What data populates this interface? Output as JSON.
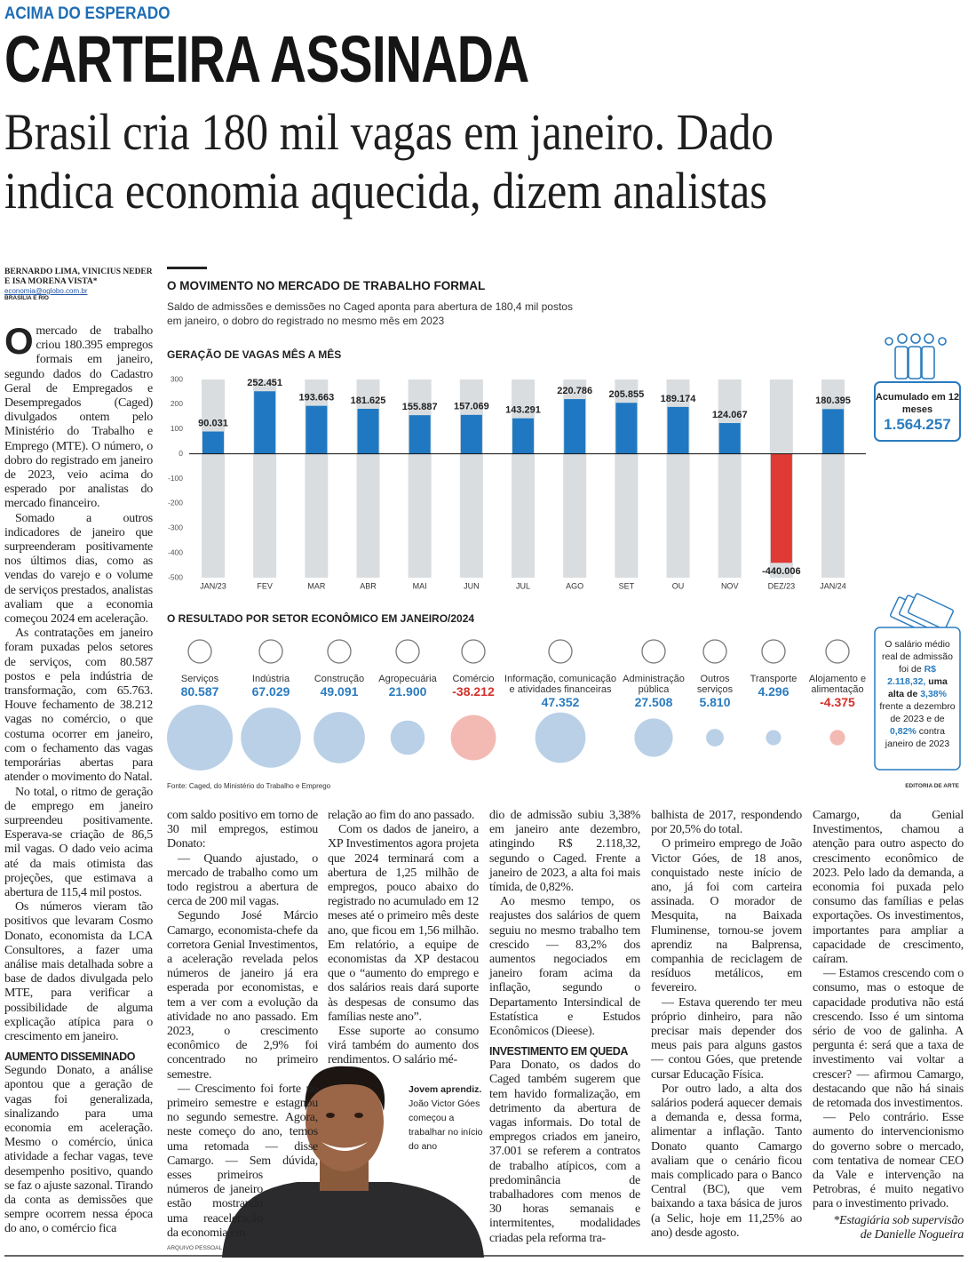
{
  "kicker": "ACIMA DO ESPERADO",
  "headline": "CARTEIRA ASSINADA",
  "deck": "Brasil cria 180 mil vagas em janeiro. Dado indica economia aquecida, dizem analistas",
  "byline": {
    "authors": "BERNARDO LIMA, VINICIUS NEDER E ISA MORENA VISTA*",
    "email": "economia@oglobo.com.br",
    "place": "BRASÍLIA E RIO"
  },
  "infographic": {
    "title": "O MOVIMENTO NO MERCADO DE TRABALHO FORMAL",
    "subtitle": "Saldo de admissões e demissões no Caged aponta para abertura de 180,4 mil postos em janeiro, o dobro do registrado no mesmo mês em 2023",
    "summary": {
      "label": "Acumulado em 12 meses",
      "value": "1.564.257"
    },
    "salary_note": [
      {
        "text": "O salário médio real de admissão foi de ",
        "style": "plain"
      },
      {
        "text": "R$ 2.118,32,",
        "style": "blue"
      },
      {
        "text": " uma alta de ",
        "style": "bold"
      },
      {
        "text": "3,38%",
        "style": "blue"
      },
      {
        "text": " frente a dezembro de 2023 e de ",
        "style": "plain"
      },
      {
        "text": "0,82%",
        "style": "blue"
      },
      {
        "text": " contra janeiro de 2023",
        "style": "plain"
      }
    ],
    "source": "Fonte: Caged, do Ministério do Trabalho e Emprego",
    "credit": "EDITORIA DE ARTE"
  },
  "chart_data": [
    {
      "type": "bar",
      "title": "GERAÇÃO DE VAGAS MÊS A MÊS",
      "categories": [
        "JAN/23",
        "FEV",
        "MAR",
        "ABR",
        "MAI",
        "JUN",
        "JUL",
        "AGO",
        "SET",
        "OU",
        "NOV",
        "DEZ/23",
        "JAN/24"
      ],
      "values": [
        90.031,
        252.451,
        193.663,
        181.625,
        155.887,
        157.069,
        143.291,
        220.786,
        205.855,
        189.174,
        124.067,
        -440.006,
        180.395
      ],
      "color": "#1f78c1",
      "negative_color": "#df3a33",
      "background_color": "#d9dde0",
      "ylim": [
        -500,
        300
      ],
      "yticks": [
        300,
        200,
        100,
        0,
        -100,
        -200,
        -300,
        -400,
        -500
      ],
      "grid": false
    },
    {
      "type": "bubble",
      "title": "O RESULTADO POR SETOR ECONÔMICO EM JANEIRO/2024",
      "categories": [
        "Serviços",
        "Indústria",
        "Construção",
        "Agropecuária",
        "Comércio",
        "Informação, comunicação e atividades financeiras",
        "Administração pública",
        "Outros serviços",
        "Transporte",
        "Alojamento e alimentação"
      ],
      "values": [
        80.587,
        67.029,
        49.091,
        21.9,
        -38.212,
        47.352,
        27.508,
        5.81,
        4.296,
        -4.375
      ],
      "value_labels": [
        "80.587",
        "67.029",
        "49.091",
        "21.900",
        "-38.212",
        "47.352",
        "27.508",
        "5.810",
        "4.296",
        "-4.375"
      ],
      "color": "#b9d0e7",
      "negative_color": "#f3bab3",
      "label_color": "#2b7cc0",
      "negative_label_color": "#d6302a"
    }
  ],
  "columns": [
    {
      "blocks": [
        {
          "dropcap": "O",
          "text": "mercado de trabalho criou 180.395 empregos formais em janeiro, segundo dados do Cadastro Geral de Empregados e Desempregados (Caged) divulgados ontem pelo Ministério do Trabalho e Emprego (MTE). O número, o dobro do registrado em janeiro de 2023, veio acima do esperado por analistas do mercado financeiro."
        },
        {
          "text": "Somado a outros indicadores de janeiro que surpreenderam positivamente nos últimos dias, como as vendas do varejo e o volume de serviços prestados, analistas avaliam que a economia começou 2024 em aceleração."
        },
        {
          "text": "As contratações em janeiro foram puxadas pelos setores de serviços, com 80.587 postos e pela indústria de transformação, com 65.763. Houve fechamento de 38.212 vagas no comércio, o que costuma ocorrer em janeiro, com o fechamento das vagas temporárias abertas para atender o movimento do Natal."
        },
        {
          "text": "No total, o ritmo de geração de emprego em janeiro surpreendeu positivamente. Esperava-se criação de 86,5 mil vagas. O dado veio acima até da mais otimista das projeções, que estimava a abertura de 115,4 mil postos."
        },
        {
          "text": "Os números vieram tão positivos que levaram Cosmo Donato, economista da LCA Consultores, a fazer uma análise mais detalhada sobre a base de dados divulgada pelo MTE, para verificar a possibilidade de alguma explicação atípica para o crescimento em janeiro."
        },
        {
          "subhead": "AUMENTO DISSEMINADO"
        },
        {
          "text": "Segundo Donato, a análise apontou que a geração de vagas foi generalizada, sinalizando para uma economia em aceleração. Mesmo o comércio, única atividade a fechar vagas, teve desempenho positivo, quando se faz o ajuste sazonal. Tirando da conta as demissões que sempre ocorrem nessa época do ano, o comércio fica"
        }
      ]
    },
    {
      "blocks": [
        {
          "text": "com saldo positivo em torno de 30 mil empregos, estimou Donato:"
        },
        {
          "text": "— Quando ajustado, o mercado de trabalho como um todo registrou a abertura de cerca de 200 mil vagas."
        },
        {
          "text": "Segundo José Márcio Camargo, economista-chefe da corretora Genial Investimentos, a aceleração revelada pelos números de janeiro já era esperada por economistas, e tem a ver com a evolução da atividade no ano passado. Em 2023, o crescimento econômico de 2,9% foi concentrado no primeiro semestre."
        },
        {
          "text": "— Crescimento foi forte no primeiro semestre e estagnou no segundo semestre. Agora, neste começo do ano, temos uma retomada — disse Camargo. — Sem dúvida, esses primeiros números de janeiro estão mostrando uma reaceleração da economia em"
        }
      ]
    },
    {
      "blocks": [
        {
          "text": "relação ao fim do ano passado."
        },
        {
          "text": "Com os dados de janeiro, a XP Investimentos agora projeta que 2024 terminará com a abertura de 1,25 milhão de empregos, pouco abaixo do registrado no acumulado em 12 meses até o primeiro mês deste ano, que ficou em 1,56 milhão. Em relatório, a equipe de economistas da XP destacou que o “aumento do emprego e dos salários reais dará suporte às despesas de consumo das famílias neste ano”."
        },
        {
          "text": "Esse suporte ao consumo virá também do aumento dos rendimentos. O salário mé-"
        }
      ]
    },
    {
      "blocks": [
        {
          "text": "dio de admissão subiu 3,38% em janeiro ante dezembro, atingindo R$ 2.118,32, segundo o Caged. Frente a janeiro de 2023, a alta foi mais tímida, de 0,82%."
        },
        {
          "text": "Ao mesmo tempo, os reajustes dos salários de quem seguiu no mesmo trabalho tem crescido — 83,2% dos aumentos negociados em janeiro foram acima da inflação, segundo o Departamento Intersindical de Estatística e Estudos Econômicos (Dieese)."
        },
        {
          "subhead": "INVESTIMENTO EM QUEDA"
        },
        {
          "text": "Para Donato, os dados do Caged também sugerem que tem havido formalização, em detrimento da abertura de vagas informais. Do total de empregos criados em janeiro, 37.001 se referem a contratos de trabalho atípicos, com a predominância de trabalhadores com menos de 30 horas semanais e intermitentes, modalidades criadas pela reforma tra-"
        }
      ]
    },
    {
      "blocks": [
        {
          "text": "balhista de 2017, respondendo por 20,5% do total."
        },
        {
          "text": "O primeiro emprego de João Victor Góes, de 18 anos, conquistado neste início de ano, já foi com carteira assinada. O morador de Mesquita, na Baixada Fluminense, tornou-se jovem aprendiz na Balprensa, companhia de reciclagem de resíduos metálicos, em fevereiro."
        },
        {
          "text": "— Estava querendo ter meu próprio dinheiro, para não precisar mais depender dos meus pais para alguns gastos — contou Góes, que pretende cursar Educação Física."
        },
        {
          "text": "Por outro lado, a alta dos salários poderá aquecer demais a demanda e, dessa forma, alimentar a inflação. Tanto Donato quanto Camargo avaliam que o cenário ficou mais complicado para o Banco Central (BC), que vem baixando a taxa básica de juros (a Selic, hoje em 11,25% ao ano) desde agosto."
        }
      ]
    },
    {
      "blocks": [
        {
          "text": "Camargo, da Genial Investimentos, chamou a atenção para outro aspecto do crescimento econômico de 2023. Pelo lado da demanda, a economia foi puxada pelo consumo das famílias e pelas exportações. Os investimentos, importantes para ampliar a capacidade de crescimento, caíram."
        },
        {
          "text": "— Estamos crescendo com o consumo, mas o estoque de capacidade produtiva não está crescendo. Isso é um sintoma sério de voo de galinha. A pergunta é: será que a taxa de investimento vai voltar a crescer? — afirmou Camargo, destacando que não há sinais de retomada dos investimentos."
        },
        {
          "text": "— Pelo contrário. Esse aumento do intervencionismo do governo sobre o mercado, com tentativa de nomear CEO da Vale e intervenção na Petrobras, é muito negativo para o investimento privado."
        },
        {
          "note": "*Estagiária sob supervisão de Danielle Nogueira"
        }
      ]
    }
  ],
  "photo": {
    "caption_lead": "Jovem aprendiz.",
    "caption": "João Victor Góes começou a trabalhar no início do ano",
    "credit": "ARQUIVO PESSOAL"
  }
}
